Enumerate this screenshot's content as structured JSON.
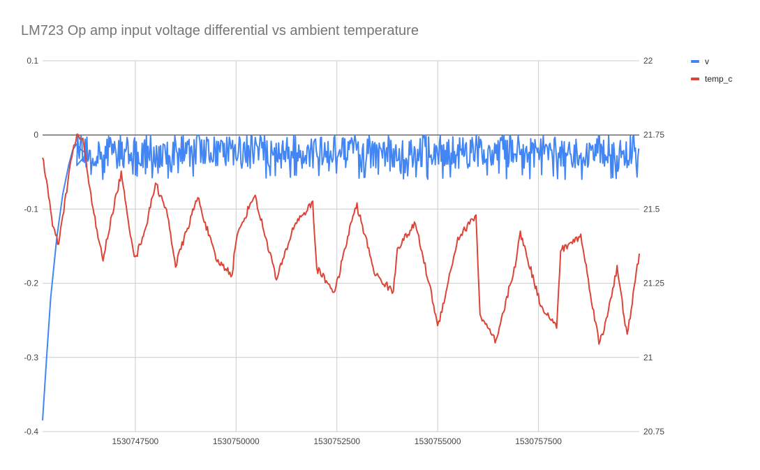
{
  "chart_data": {
    "type": "line",
    "title": "LM723 Op amp input voltage differential vs ambient temperature",
    "xlabel": "",
    "ylabel_left": "",
    "ylabel_right": "",
    "xlim": [
      1530745200,
      1530760000
    ],
    "x_ticks": [
      1530747500,
      1530750000,
      1530752500,
      1530755000,
      1530757500
    ],
    "ylim_left": [
      -0.4,
      0.1
    ],
    "y_ticks_left": [
      0.1,
      0,
      -0.1,
      -0.2,
      -0.3,
      -0.4
    ],
    "ylim_right": [
      20.75,
      22
    ],
    "y_ticks_right": [
      22,
      21.75,
      21.5,
      21.25,
      21,
      20.75
    ],
    "grid": true,
    "zero_line": true,
    "legend_position": "right",
    "series": [
      {
        "name": "v",
        "axis": "left",
        "color": "#4285f4",
        "x": [
          1530745200,
          1530745300,
          1530745400,
          1530745550,
          1530745700,
          1530745850,
          1530745950,
          1530746050,
          1530746150,
          1530746300
        ],
        "y": [
          -0.385,
          -0.3,
          -0.22,
          -0.14,
          -0.08,
          -0.04,
          -0.02,
          -0.012,
          -0.02,
          -0.025
        ],
        "noise": {
          "from_x": 1530746050,
          "to_x": 1530760000,
          "mean": -0.025,
          "min": -0.06,
          "max": 0
        }
      },
      {
        "name": "temp_c",
        "axis": "right",
        "color": "#db4437",
        "x": [
          1530745200,
          1530745350,
          1530745450,
          1530745600,
          1530745750,
          1530745900,
          1530746050,
          1530746200,
          1530746400,
          1530746550,
          1530746700,
          1530746920,
          1530747150,
          1530747300,
          1530747500,
          1530747800,
          1530748000,
          1530748300,
          1530748500,
          1530748900,
          1530749050,
          1530749500,
          1530749900,
          1530750000,
          1530750450,
          1530750900,
          1530751000,
          1530751450,
          1530751900,
          1530752000,
          1530752450,
          1530752900,
          1530753000,
          1530753450,
          1530753900,
          1530754000,
          1530754450,
          1530754900,
          1530755000,
          1530755500,
          1530755950,
          1530756050,
          1530756450,
          1530756950,
          1530757050,
          1530757550,
          1530757950,
          1530758050,
          1530758550,
          1530759000,
          1530759100,
          1530759450,
          1530759700,
          1530760000
        ],
        "y": [
          21.68,
          21.55,
          21.44,
          21.38,
          21.52,
          21.66,
          21.75,
          21.73,
          21.55,
          21.42,
          21.33,
          21.48,
          21.62,
          21.48,
          21.33,
          21.46,
          21.59,
          21.48,
          21.31,
          21.48,
          21.54,
          21.33,
          21.28,
          21.4,
          21.55,
          21.32,
          21.26,
          21.45,
          21.52,
          21.3,
          21.22,
          21.48,
          21.51,
          21.28,
          21.22,
          21.37,
          21.45,
          21.18,
          21.1,
          21.4,
          21.48,
          21.14,
          21.05,
          21.33,
          21.42,
          21.18,
          21.1,
          21.36,
          21.41,
          21.05,
          21.08,
          21.3,
          21.07,
          21.35
        ]
      }
    ]
  }
}
